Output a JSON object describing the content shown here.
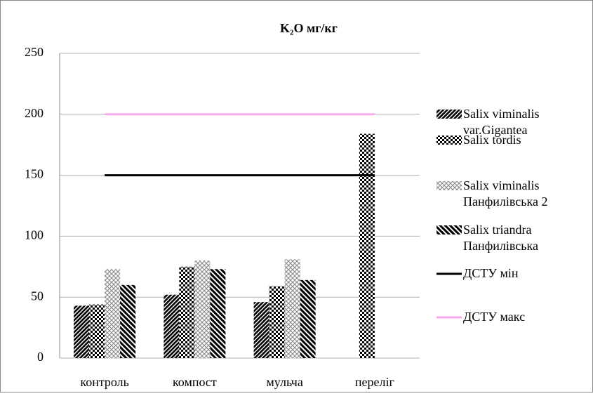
{
  "chart_data": {
    "type": "bar",
    "title": "K₂O мг/кг",
    "categories": [
      "контроль",
      "компост",
      "мульча",
      "переліг"
    ],
    "series": [
      {
        "name": "Salix viminalis var.Gigantea",
        "color": "#000000",
        "pattern": "dense-diagonal",
        "values": [
          43,
          52,
          46,
          null
        ]
      },
      {
        "name": "Salix tordis",
        "color": "#000000",
        "pattern": "checker",
        "values": [
          44,
          75,
          59,
          184
        ]
      },
      {
        "name": "Salix viminalis Панфилівська 2",
        "color": "#8c8c8c",
        "pattern": "light-weave",
        "values": [
          73,
          80,
          81,
          null
        ]
      },
      {
        "name": "Salix triandra Панфилівська",
        "color": "#000000",
        "pattern": "wide-diagonal",
        "values": [
          60,
          73,
          64,
          null
        ]
      },
      {
        "name": "ДСТУ мін",
        "type": "line",
        "color": "#000000",
        "values": [
          150,
          150,
          150,
          150
        ]
      },
      {
        "name": "ДСТУ макс",
        "type": "line",
        "color": "#f7a8ee",
        "values": [
          200,
          200,
          200,
          200
        ]
      }
    ],
    "ylim": [
      0,
      250
    ],
    "yticks": [
      0,
      50,
      100,
      150,
      200,
      250
    ],
    "grid": true,
    "legend": "right"
  }
}
